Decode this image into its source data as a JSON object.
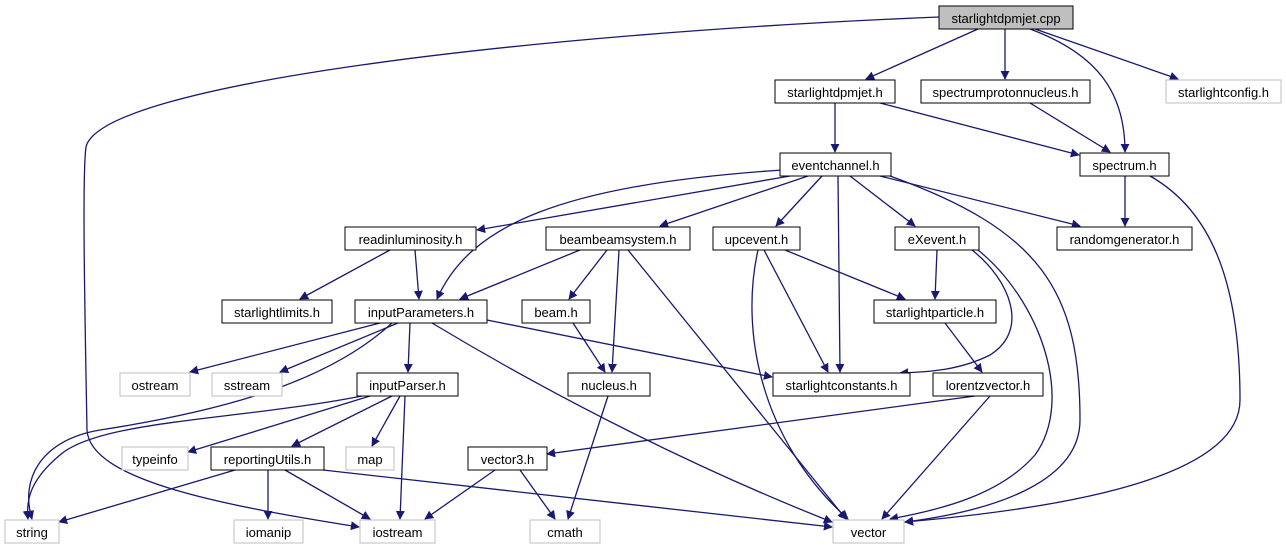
{
  "graph": {
    "title": "starlightdpmjet.cpp",
    "colors": {
      "edge": "#191970",
      "root_fill": "#bfbfbf",
      "node_fill": "#ffffff",
      "node_stroke": "#000000",
      "external_stroke": "#bfbfbf",
      "text": "#000000"
    },
    "nodes": [
      {
        "id": "starlightdpmjet_cpp",
        "label": "starlightdpmjet.cpp",
        "kind": "root"
      },
      {
        "id": "starlightdpmjet_h",
        "label": "starlightdpmjet.h",
        "kind": "header"
      },
      {
        "id": "spectrumprotonnucleus_h",
        "label": "spectrumprotonnucleus.h",
        "kind": "header"
      },
      {
        "id": "starlightconfig_h",
        "label": "starlightconfig.h",
        "kind": "external"
      },
      {
        "id": "eventchannel_h",
        "label": "eventchannel.h",
        "kind": "header"
      },
      {
        "id": "spectrum_h",
        "label": "spectrum.h",
        "kind": "header"
      },
      {
        "id": "readinluminosity_h",
        "label": "readinluminosity.h",
        "kind": "header"
      },
      {
        "id": "beambeamsystem_h",
        "label": "beambeamsystem.h",
        "kind": "header"
      },
      {
        "id": "upcevent_h",
        "label": "upcevent.h",
        "kind": "header"
      },
      {
        "id": "eXevent_h",
        "label": "eXevent.h",
        "kind": "header"
      },
      {
        "id": "randomgenerator_h",
        "label": "randomgenerator.h",
        "kind": "header"
      },
      {
        "id": "starlightlimits_h",
        "label": "starlightlimits.h",
        "kind": "header"
      },
      {
        "id": "inputParameters_h",
        "label": "inputParameters.h",
        "kind": "header"
      },
      {
        "id": "beam_h",
        "label": "beam.h",
        "kind": "header"
      },
      {
        "id": "starlightparticle_h",
        "label": "starlightparticle.h",
        "kind": "header"
      },
      {
        "id": "ostream",
        "label": "ostream",
        "kind": "external"
      },
      {
        "id": "sstream",
        "label": "sstream",
        "kind": "external"
      },
      {
        "id": "inputParser_h",
        "label": "inputParser.h",
        "kind": "header"
      },
      {
        "id": "nucleus_h",
        "label": "nucleus.h",
        "kind": "header"
      },
      {
        "id": "starlightconstants_h",
        "label": "starlightconstants.h",
        "kind": "header"
      },
      {
        "id": "lorentzvector_h",
        "label": "lorentzvector.h",
        "kind": "header"
      },
      {
        "id": "typeinfo",
        "label": "typeinfo",
        "kind": "external"
      },
      {
        "id": "reportingUtils_h",
        "label": "reportingUtils.h",
        "kind": "header"
      },
      {
        "id": "map",
        "label": "map",
        "kind": "external"
      },
      {
        "id": "vector3_h",
        "label": "vector3.h",
        "kind": "header"
      },
      {
        "id": "string",
        "label": "string",
        "kind": "external"
      },
      {
        "id": "iomanip",
        "label": "iomanip",
        "kind": "external"
      },
      {
        "id": "iostream",
        "label": "iostream",
        "kind": "external"
      },
      {
        "id": "cmath",
        "label": "cmath",
        "kind": "external"
      },
      {
        "id": "vector",
        "label": "vector",
        "kind": "external"
      }
    ],
    "edges": [
      {
        "from": "starlightdpmjet_cpp",
        "to": "starlightdpmjet_h"
      },
      {
        "from": "starlightdpmjet_cpp",
        "to": "spectrumprotonnucleus_h"
      },
      {
        "from": "starlightdpmjet_cpp",
        "to": "starlightconfig_h"
      },
      {
        "from": "starlightdpmjet_cpp",
        "to": "spectrum_h"
      },
      {
        "from": "starlightdpmjet_cpp",
        "to": "iostream"
      },
      {
        "from": "starlightdpmjet_h",
        "to": "eventchannel_h"
      },
      {
        "from": "starlightdpmjet_h",
        "to": "spectrum_h"
      },
      {
        "from": "spectrumprotonnucleus_h",
        "to": "spectrum_h"
      },
      {
        "from": "eventchannel_h",
        "to": "readinluminosity_h"
      },
      {
        "from": "eventchannel_h",
        "to": "beambeamsystem_h"
      },
      {
        "from": "eventchannel_h",
        "to": "upcevent_h"
      },
      {
        "from": "eventchannel_h",
        "to": "eXevent_h"
      },
      {
        "from": "eventchannel_h",
        "to": "randomgenerator_h"
      },
      {
        "from": "eventchannel_h",
        "to": "inputParameters_h"
      },
      {
        "from": "eventchannel_h",
        "to": "starlightconstants_h"
      },
      {
        "from": "eventchannel_h",
        "to": "vector"
      },
      {
        "from": "spectrum_h",
        "to": "randomgenerator_h"
      },
      {
        "from": "spectrum_h",
        "to": "vector"
      },
      {
        "from": "readinluminosity_h",
        "to": "starlightlimits_h"
      },
      {
        "from": "readinluminosity_h",
        "to": "inputParameters_h"
      },
      {
        "from": "beambeamsystem_h",
        "to": "inputParameters_h"
      },
      {
        "from": "beambeamsystem_h",
        "to": "beam_h"
      },
      {
        "from": "beambeamsystem_h",
        "to": "nucleus_h"
      },
      {
        "from": "beambeamsystem_h",
        "to": "vector"
      },
      {
        "from": "upcevent_h",
        "to": "starlightparticle_h"
      },
      {
        "from": "upcevent_h",
        "to": "starlightconstants_h"
      },
      {
        "from": "upcevent_h",
        "to": "vector"
      },
      {
        "from": "eXevent_h",
        "to": "starlightparticle_h"
      },
      {
        "from": "eXevent_h",
        "to": "starlightconstants_h"
      },
      {
        "from": "eXevent_h",
        "to": "vector"
      },
      {
        "from": "inputParameters_h",
        "to": "ostream"
      },
      {
        "from": "inputParameters_h",
        "to": "sstream"
      },
      {
        "from": "inputParameters_h",
        "to": "inputParser_h"
      },
      {
        "from": "inputParameters_h",
        "to": "starlightconstants_h"
      },
      {
        "from": "inputParameters_h",
        "to": "string"
      },
      {
        "from": "inputParameters_h",
        "to": "vector"
      },
      {
        "from": "beam_h",
        "to": "nucleus_h"
      },
      {
        "from": "starlightparticle_h",
        "to": "lorentzvector_h"
      },
      {
        "from": "inputParser_h",
        "to": "typeinfo"
      },
      {
        "from": "inputParser_h",
        "to": "reportingUtils_h"
      },
      {
        "from": "inputParser_h",
        "to": "map"
      },
      {
        "from": "inputParser_h",
        "to": "string"
      },
      {
        "from": "inputParser_h",
        "to": "iostream"
      },
      {
        "from": "nucleus_h",
        "to": "cmath"
      },
      {
        "from": "lorentzvector_h",
        "to": "vector3_h"
      },
      {
        "from": "lorentzvector_h",
        "to": "vector"
      },
      {
        "from": "reportingUtils_h",
        "to": "string"
      },
      {
        "from": "reportingUtils_h",
        "to": "iomanip"
      },
      {
        "from": "reportingUtils_h",
        "to": "iostream"
      },
      {
        "from": "reportingUtils_h",
        "to": "vector"
      },
      {
        "from": "vector3_h",
        "to": "iostream"
      },
      {
        "from": "vector3_h",
        "to": "cmath"
      }
    ]
  }
}
